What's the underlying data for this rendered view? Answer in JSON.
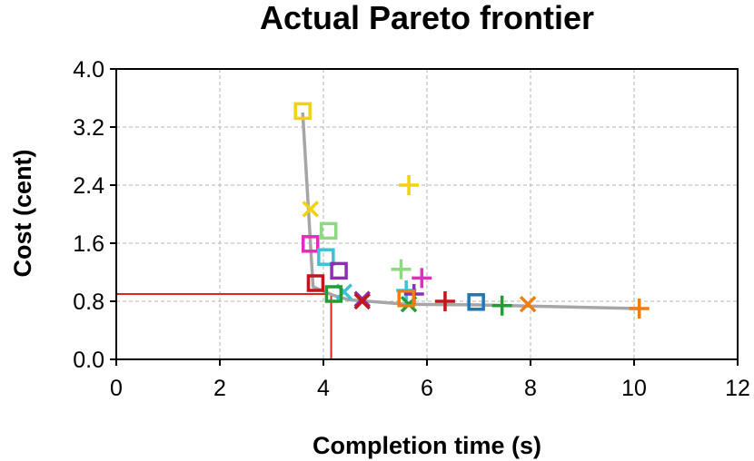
{
  "chart_data": {
    "type": "scatter",
    "title": "Actual Pareto frontier",
    "xlabel": "Completion time (s)",
    "ylabel": "Cost (cent)",
    "xlim": [
      0,
      12
    ],
    "ylim": [
      0,
      4.0
    ],
    "xticks": [
      0,
      2,
      4,
      6,
      8,
      10,
      12
    ],
    "yticks": [
      0.0,
      0.8,
      1.6,
      2.4,
      3.2,
      4.0
    ],
    "xtick_labels": [
      "0",
      "2",
      "4",
      "6",
      "8",
      "10",
      "12"
    ],
    "ytick_labels": [
      "0.0",
      "0.8",
      "1.6",
      "2.4",
      "3.2",
      "4.0"
    ],
    "grid": true,
    "frontier": {
      "color": "#a6a6a6",
      "points": [
        [
          3.6,
          3.4
        ],
        [
          3.8,
          1.0
        ],
        [
          4.2,
          0.88
        ],
        [
          4.5,
          0.82
        ],
        [
          5.6,
          0.76
        ],
        [
          7.0,
          0.75
        ],
        [
          10.1,
          0.7
        ]
      ]
    },
    "reference_lines": {
      "color": "#e0231c",
      "y_value": 0.9,
      "x_value": 4.15
    },
    "points": [
      {
        "x": 3.6,
        "y": 3.42,
        "marker": "square",
        "color": "#f2d20c"
      },
      {
        "x": 3.75,
        "y": 2.07,
        "marker": "x",
        "color": "#f2d20c"
      },
      {
        "x": 5.65,
        "y": 2.4,
        "marker": "plus",
        "color": "#f2d20c"
      },
      {
        "x": 4.1,
        "y": 1.77,
        "marker": "square",
        "color": "#8ed982"
      },
      {
        "x": 5.5,
        "y": 1.24,
        "marker": "plus",
        "color": "#8ed982"
      },
      {
        "x": 3.75,
        "y": 1.59,
        "marker": "square",
        "color": "#e62bbf"
      },
      {
        "x": 5.9,
        "y": 1.12,
        "marker": "plus",
        "color": "#e62bbf"
      },
      {
        "x": 4.05,
        "y": 1.41,
        "marker": "square",
        "color": "#3fc0d6"
      },
      {
        "x": 4.4,
        "y": 0.93,
        "marker": "x",
        "color": "#3fc0d6"
      },
      {
        "x": 5.6,
        "y": 0.95,
        "marker": "plus",
        "color": "#3fc0d6"
      },
      {
        "x": 4.3,
        "y": 1.22,
        "marker": "square",
        "color": "#8d2fb0"
      },
      {
        "x": 4.75,
        "y": 0.83,
        "marker": "x",
        "color": "#8d2fb0"
      },
      {
        "x": 5.75,
        "y": 0.9,
        "marker": "plus",
        "color": "#8d2fb0"
      },
      {
        "x": 3.85,
        "y": 1.05,
        "marker": "square",
        "color": "#c0161c"
      },
      {
        "x": 4.75,
        "y": 0.8,
        "marker": "x",
        "color": "#c0161c"
      },
      {
        "x": 6.35,
        "y": 0.8,
        "marker": "plus",
        "color": "#c0161c"
      },
      {
        "x": 4.2,
        "y": 0.9,
        "marker": "square",
        "color": "#239c35"
      },
      {
        "x": 5.65,
        "y": 0.76,
        "marker": "x",
        "color": "#239c35"
      },
      {
        "x": 7.45,
        "y": 0.74,
        "marker": "plus",
        "color": "#239c35"
      },
      {
        "x": 6.95,
        "y": 0.79,
        "marker": "square",
        "color": "#1f77b4"
      },
      {
        "x": 5.6,
        "y": 0.84,
        "marker": "square",
        "color": "#f07d11"
      },
      {
        "x": 7.95,
        "y": 0.76,
        "marker": "x",
        "color": "#f07d11"
      },
      {
        "x": 10.1,
        "y": 0.7,
        "marker": "plus",
        "color": "#f07d11"
      }
    ]
  },
  "colors": {
    "axis": "#000000",
    "grid": "#b5b5b5"
  }
}
